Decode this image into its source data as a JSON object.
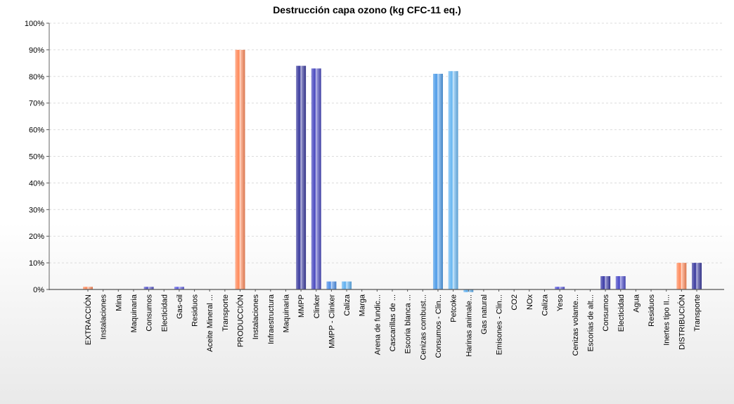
{
  "chart_data": {
    "type": "bar",
    "title": "Destrucción capa ozono (kg CFC-11 eq.)",
    "ylim": [
      0,
      100
    ],
    "yticks": [
      "0%",
      "10%",
      "20%",
      "30%",
      "40%",
      "50%",
      "60%",
      "70%",
      "80%",
      "90%",
      "100%"
    ],
    "grid": true,
    "legend": "none",
    "categories": [
      "EXTRACCIÓN",
      "Instalaciones",
      "Mina",
      "Maquinaria",
      "Consumos",
      "Electicidad",
      "Gas-oil",
      "Residuos",
      "Aceite Mineral ...",
      "Transporte",
      "PRODUCCIÓN",
      "Instalaciones",
      "Infraestructura",
      "Maquinaria",
      "MMPP",
      "Clinker",
      "MMPP - Clinker",
      "Caliza",
      "Marga",
      "Arena de fundic...",
      "Cascarillas de ...",
      "Escoria blanca ...",
      "Cenizas combust...",
      "Consumos - Clin...",
      "Petcoke",
      "Harinas animale...",
      "Gas natural",
      "Emisones - Clin...",
      "CO2",
      "NOx",
      "Caliza",
      "Yeso",
      "Cenizas volante...",
      "Escorias de alt...",
      "Consumos",
      "Electicidad",
      "Agua",
      "Residuos",
      "Inertes tipo II...",
      "DISTRIBUCIÓN",
      "Transporte"
    ],
    "values": [
      1,
      0,
      0,
      0,
      1,
      0,
      1,
      0,
      0,
      0,
      90,
      0,
      0,
      0,
      84,
      83,
      3,
      3,
      0,
      0,
      0,
      0,
      0,
      81,
      82,
      -1,
      0,
      0,
      0,
      0,
      0,
      1,
      0,
      0,
      5,
      5,
      0,
      0,
      0,
      10,
      10
    ],
    "bar_colors": [
      "#ff8a5b",
      "#3b3ba8",
      "#3b3ba8",
      "#3b3ba8",
      "#5555c8",
      "#3b3ba8",
      "#5f5fe0",
      "#3b3ba8",
      "#3b3ba8",
      "#3b3ba8",
      "#ff8a5b",
      "#3b3ba8",
      "#3b3ba8",
      "#3b3ba8",
      "#3a3a9e",
      "#4a4ac0",
      "#4d8fe8",
      "#5fb0f0",
      "#5fb0f0",
      "#5fb0f0",
      "#5fb0f0",
      "#5fb0f0",
      "#5fb0f0",
      "#4d9be8",
      "#6ab8f2",
      "#5fb0f0",
      "#5fb0f0",
      "#5fb0f0",
      "#5fb0f0",
      "#5fb0f0",
      "#5fb0f0",
      "#5555d8",
      "#3b3ba8",
      "#3b3ba8",
      "#3b3ba8",
      "#4a4ac8",
      "#3b3ba8",
      "#3b3ba8",
      "#3b3ba8",
      "#ff8a5b",
      "#3a3a9e"
    ]
  }
}
